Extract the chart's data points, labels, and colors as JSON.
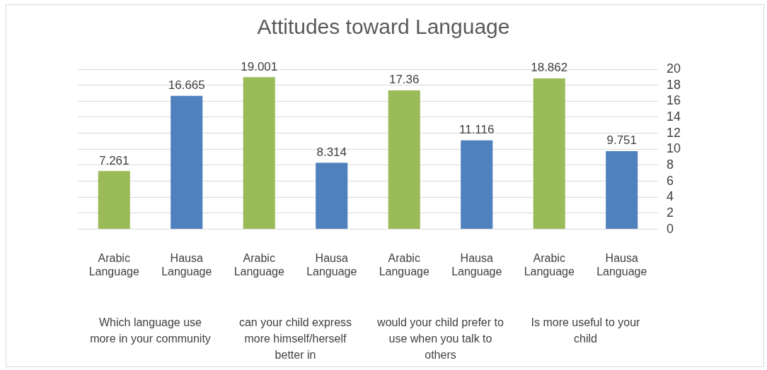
{
  "chart_data": {
    "type": "bar",
    "title": "Attitudes toward Language",
    "categories": [
      "Arabic Language",
      "Hausa Language",
      "Arabic Language",
      "Hausa Language",
      "Arabic Language",
      "Hausa Language",
      "Arabic Language",
      "Hausa Language"
    ],
    "values": [
      7.261,
      16.665,
      19.001,
      8.314,
      17.36,
      11.116,
      18.862,
      9.751
    ],
    "colors": [
      "#9bbb59",
      "#4f81bd",
      "#9bbb59",
      "#4f81bd",
      "#9bbb59",
      "#4f81bd",
      "#9bbb59",
      "#4f81bd"
    ],
    "ylim": [
      0,
      20
    ],
    "yticks": [
      0,
      2,
      4,
      6,
      8,
      10,
      12,
      14,
      16,
      18,
      20
    ],
    "grid": "y",
    "legend": false,
    "data_labels": true,
    "annotations": [
      "Which language use more in your community",
      "can your child express more himself/herself better in",
      "would your child prefer to use when you talk to others",
      "Is more useful to your child"
    ]
  }
}
